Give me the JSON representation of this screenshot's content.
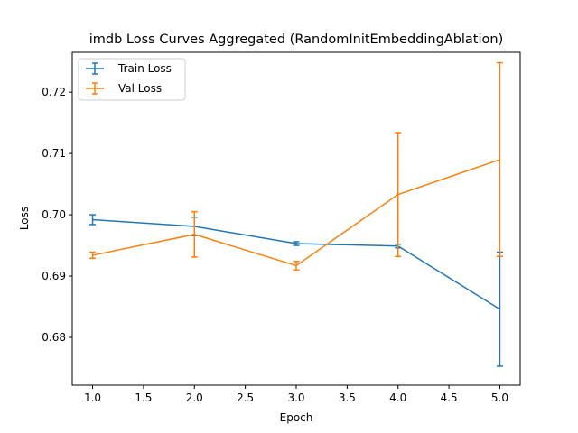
{
  "chart_data": {
    "type": "line",
    "title": "imdb Loss Curves Aggregated (RandomInitEmbeddingAblation)",
    "xlabel": "Epoch",
    "ylabel": "Loss",
    "x": [
      1,
      2,
      3,
      4,
      5
    ],
    "xlim": [
      0.8,
      5.2
    ],
    "ylim": [
      0.6722,
      0.7265
    ],
    "xticks": [
      "1.0",
      "1.5",
      "2.0",
      "2.5",
      "3.0",
      "3.5",
      "4.0",
      "4.5",
      "5.0"
    ],
    "yticks": [
      "0.68",
      "0.69",
      "0.70",
      "0.71",
      "0.72"
    ],
    "grid": false,
    "legend_position": "top-left",
    "series": [
      {
        "name": "Train Loss",
        "color": "#1f77b4",
        "values": [
          0.6992,
          0.6981,
          0.6953,
          0.6949,
          0.6846
        ],
        "errors": [
          0.0008,
          0.0015,
          0.0003,
          0.0003,
          0.0093
        ]
      },
      {
        "name": "Val Loss",
        "color": "#ff7f0e",
        "values": [
          0.6934,
          0.6968,
          0.6917,
          0.7033,
          0.709
        ],
        "errors": [
          0.0005,
          0.0037,
          0.0007,
          0.0101,
          0.0158
        ]
      }
    ]
  }
}
